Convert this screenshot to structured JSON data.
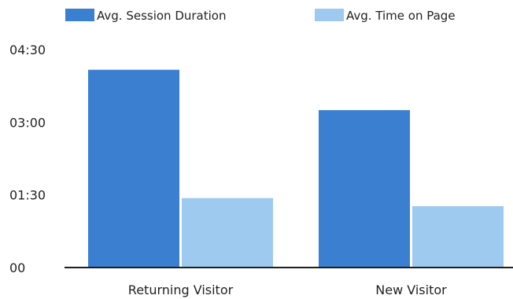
{
  "chart_data": {
    "type": "bar",
    "categories": [
      "Returning Visitor",
      "New Visitor"
    ],
    "series": [
      {
        "name": "Avg. Session Duration",
        "values_seconds": [
          245,
          195
        ],
        "color": "#3b7fd0"
      },
      {
        "name": "Avg. Time on Page",
        "values_seconds": [
          86,
          76
        ],
        "color": "#9fcaef"
      }
    ],
    "y_ticks": [
      {
        "seconds": 0,
        "label": "00"
      },
      {
        "seconds": 90,
        "label": "01:30"
      },
      {
        "seconds": 180,
        "label": "03:00"
      },
      {
        "seconds": 270,
        "label": "04:30"
      }
    ],
    "ylim_seconds": [
      0,
      270
    ],
    "y_unit": "mm:ss",
    "grid": false,
    "legend_position": "top"
  }
}
